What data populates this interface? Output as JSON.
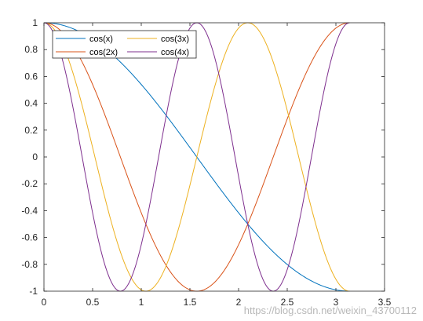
{
  "chart_data": {
    "type": "line",
    "xlim": [
      0,
      3.5
    ],
    "ylim": [
      -1,
      1
    ],
    "xticks": [
      0,
      0.5,
      1,
      1.5,
      2,
      2.5,
      3,
      3.5
    ],
    "xtick_labels": [
      "0",
      "0.5",
      "1",
      "1.5",
      "2",
      "2.5",
      "3",
      "3.5"
    ],
    "yticks": [
      -1,
      -0.8,
      -0.6,
      -0.4,
      -0.2,
      0,
      0.2,
      0.4,
      0.6,
      0.8,
      1
    ],
    "ytick_labels": [
      "-1",
      "-0.8",
      "-0.6",
      "-0.4",
      "-0.2",
      "0",
      "0.2",
      "0.4",
      "0.6",
      "0.8",
      "1"
    ],
    "x_domain": [
      0,
      3.14159
    ],
    "grid": false,
    "legend": {
      "placement": "top-left",
      "columns": 2
    },
    "series": [
      {
        "name": "cos(x)",
        "frequency": 1,
        "color": "#0072BD"
      },
      {
        "name": "cos(2x)",
        "frequency": 2,
        "color": "#D95319"
      },
      {
        "name": "cos(3x)",
        "frequency": 3,
        "color": "#EDB120"
      },
      {
        "name": "cos(4x)",
        "frequency": 4,
        "color": "#7E2F8E"
      }
    ]
  },
  "watermark": "https://blog.csdn.net/weixin_43700112"
}
